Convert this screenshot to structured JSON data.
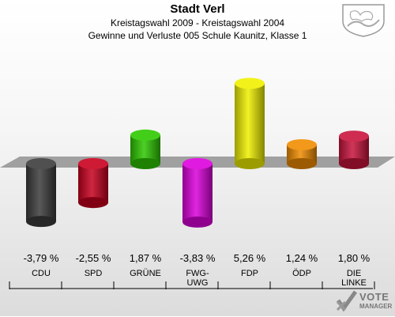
{
  "header": {
    "title": "Stadt Verl",
    "subtitle1": "Kreistagswahl 2009 - Kreistagswahl 2004",
    "subtitle2": "Gewinne und Verluste 005 Schule Kaunitz, Klasse 1"
  },
  "logo": {
    "line1": "VOTE",
    "line2": "MANAGER"
  },
  "chart_data": {
    "type": "bar",
    "categories": [
      "CDU",
      "SPD",
      "GRÜNE",
      "FWG-\nUWG",
      "FDP",
      "ÖDP",
      "DIE\nLINKE"
    ],
    "values": [
      -3.79,
      -2.55,
      1.87,
      -3.83,
      5.26,
      1.24,
      1.8
    ],
    "value_labels": [
      "-3,79 %",
      "-2,55 %",
      "1,87 %",
      "-3,83 %",
      "5,26 %",
      "1,24 %",
      "1,80 %"
    ],
    "colors": [
      "#3c3c3c",
      "#c8001e",
      "#2ec800",
      "#dc00dc",
      "#f0f000",
      "#f08c00",
      "#c8143c"
    ],
    "title": "",
    "xlabel": "",
    "ylabel": "",
    "grid": false
  }
}
